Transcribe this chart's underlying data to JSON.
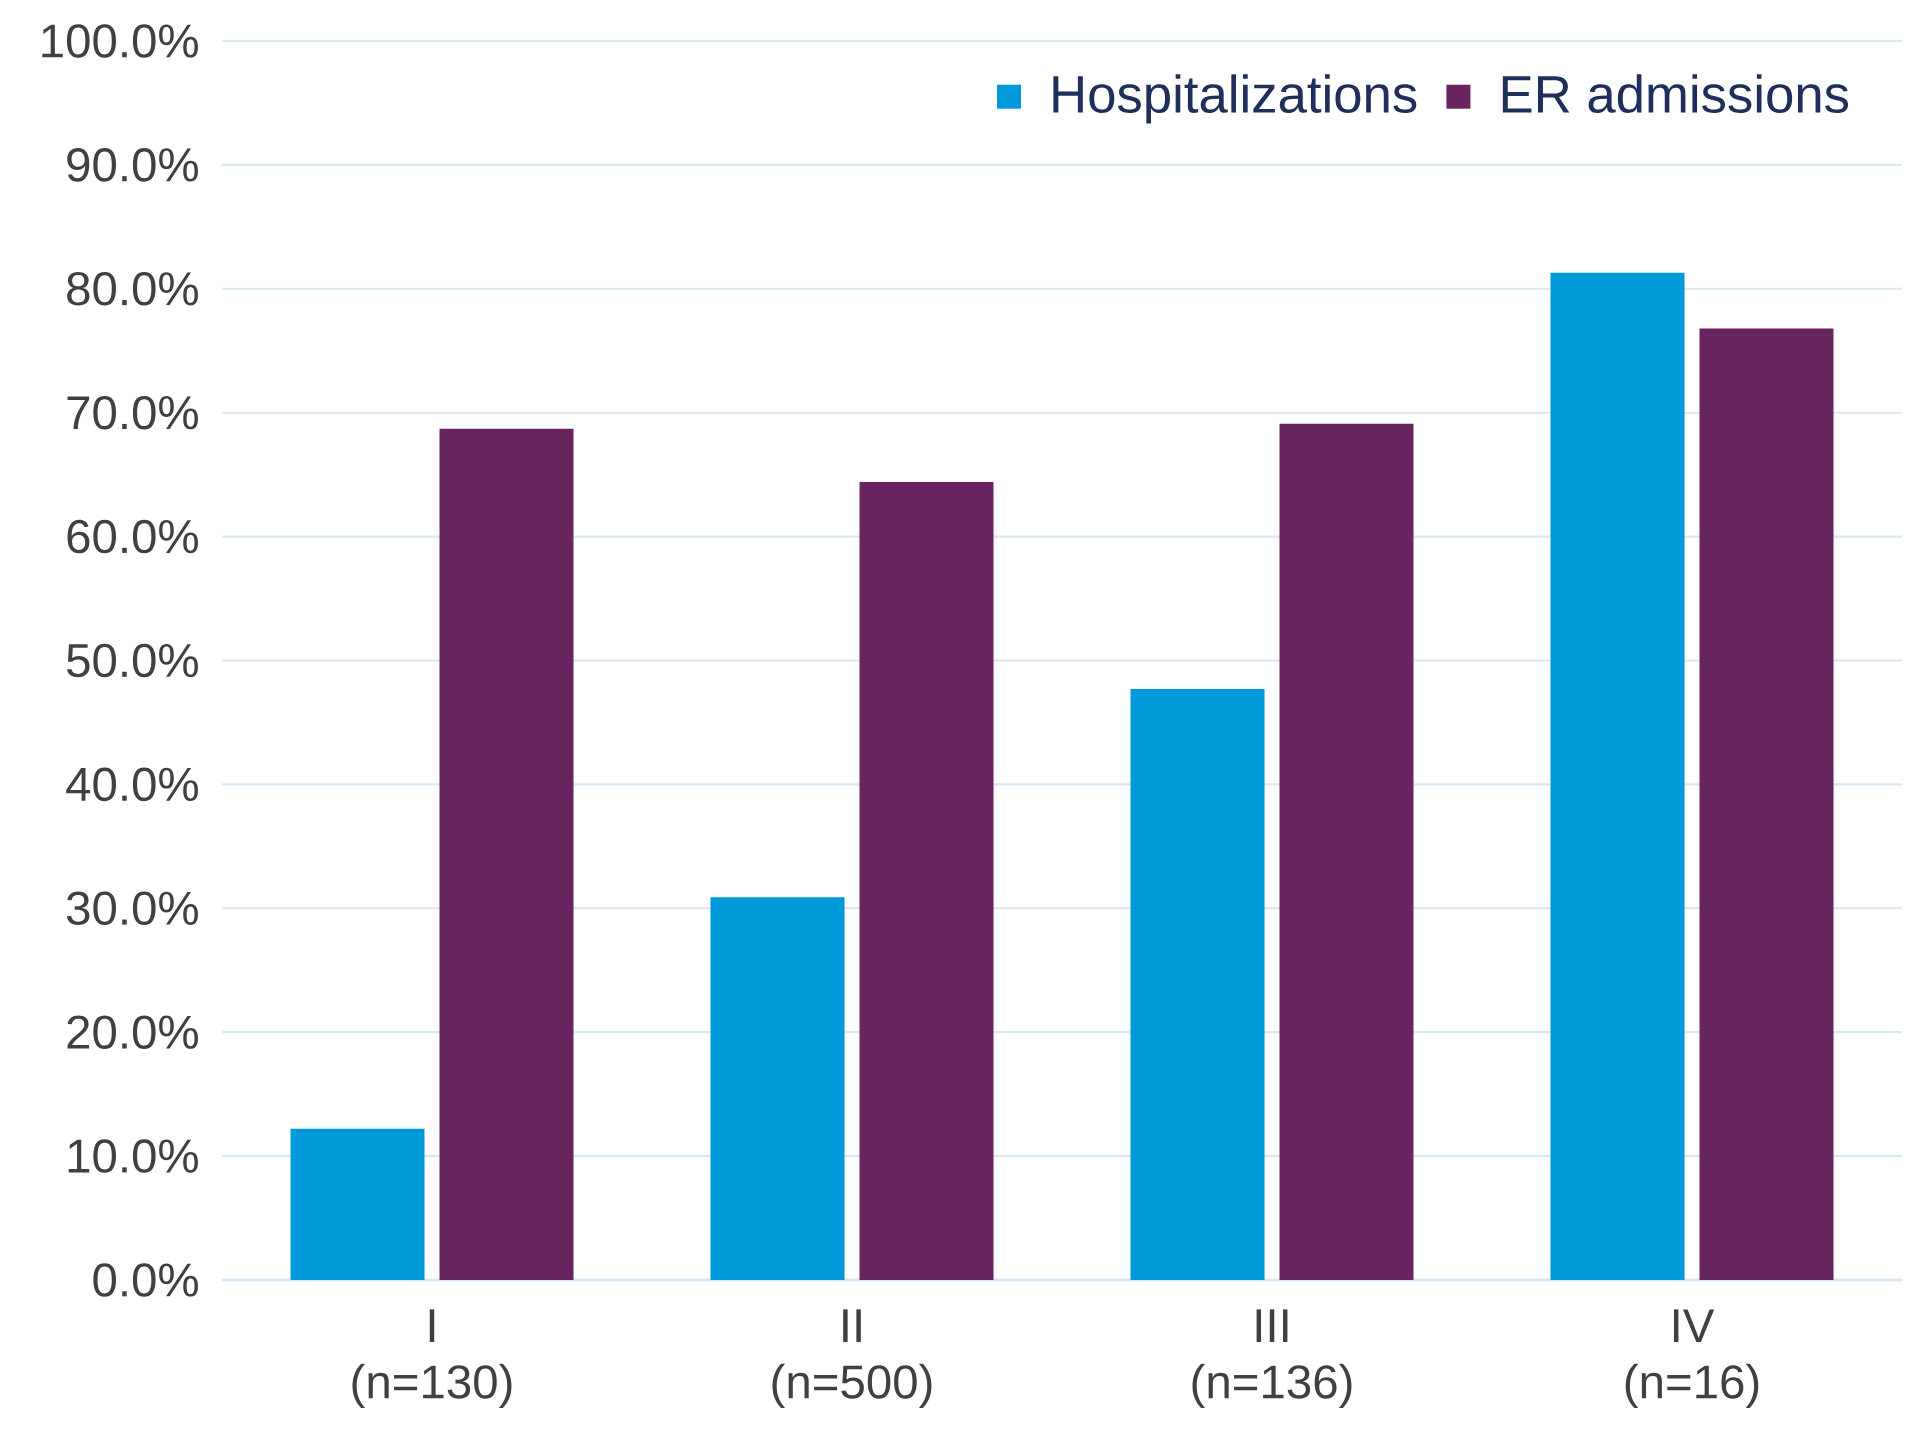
{
  "chart_data": {
    "type": "bar",
    "categories": [
      "I (n=130)",
      "II (n=500)",
      "III (n=136)",
      "IV (n=16)"
    ],
    "series": [
      {
        "name": "Hospitalizations",
        "color": "#009ADB",
        "values": [
          12.2,
          30.9,
          47.7,
          81.3
        ]
      },
      {
        "name": "ER admissions",
        "color": "#68245F",
        "values": [
          68.7,
          64.4,
          69.1,
          76.8
        ]
      }
    ],
    "ylim": [
      0,
      100
    ],
    "yticks": [
      {
        "value": 0,
        "label": "0.0%"
      },
      {
        "value": 10,
        "label": "10.0%"
      },
      {
        "value": 20,
        "label": "20.0%"
      },
      {
        "value": 30,
        "label": "30.0%"
      },
      {
        "value": 40,
        "label": "40.0%"
      },
      {
        "value": 50,
        "label": "50.0%"
      },
      {
        "value": 60,
        "label": "60.0%"
      },
      {
        "value": 70,
        "label": "70.0%"
      },
      {
        "value": 80,
        "label": "80.0%"
      },
      {
        "value": 90,
        "label": "90.0%"
      },
      {
        "value": 100,
        "label": "100.0%"
      }
    ],
    "grid": "y",
    "legend": "top right"
  }
}
